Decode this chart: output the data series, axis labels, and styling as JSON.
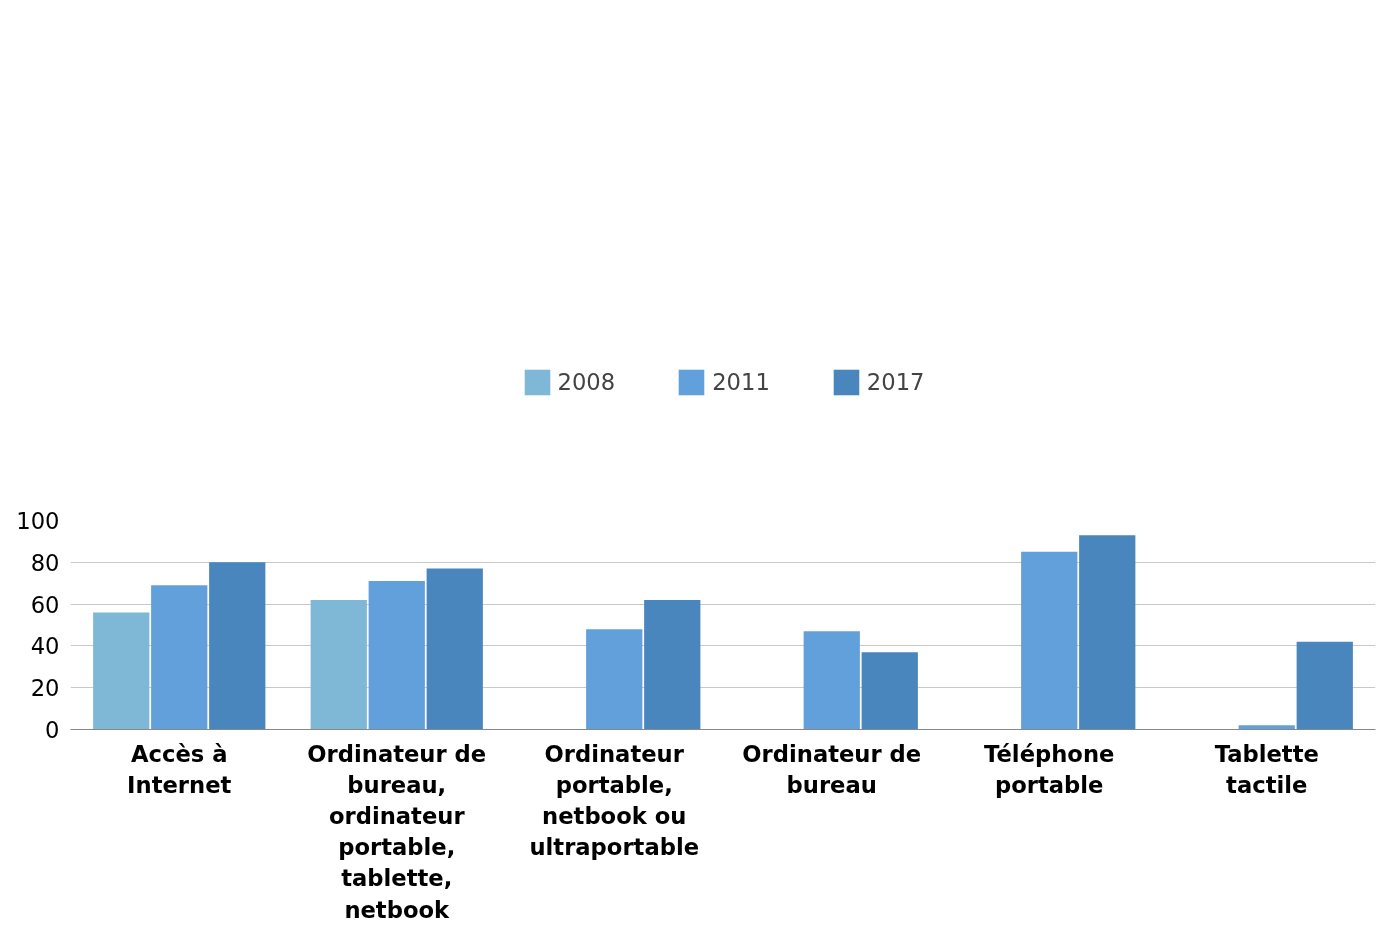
{
  "chart_data": {
    "type": "bar",
    "categories": [
      "Accès à Internet",
      "Ordinateur de bureau, ordinateur portable, tablette, netbook",
      "Ordinateur portable, netbook ou ultraportable",
      "Ordinateur de bureau",
      "Téléphone portable",
      "Tablette tactile"
    ],
    "series": [
      {
        "name": "2008",
        "color": "#7fb8d6",
        "values": [
          56,
          62,
          null,
          null,
          null,
          null
        ]
      },
      {
        "name": "2011",
        "color": "#62a0db",
        "values": [
          69,
          71,
          48,
          47,
          85,
          2
        ]
      },
      {
        "name": "2017",
        "color": "#4a86be",
        "values": [
          80,
          77,
          62,
          37,
          93,
          42
        ]
      }
    ],
    "ylim": [
      0,
      100
    ],
    "yticks": [
      0,
      20,
      40,
      60,
      80,
      100
    ],
    "grid": "y",
    "legend": "top"
  }
}
